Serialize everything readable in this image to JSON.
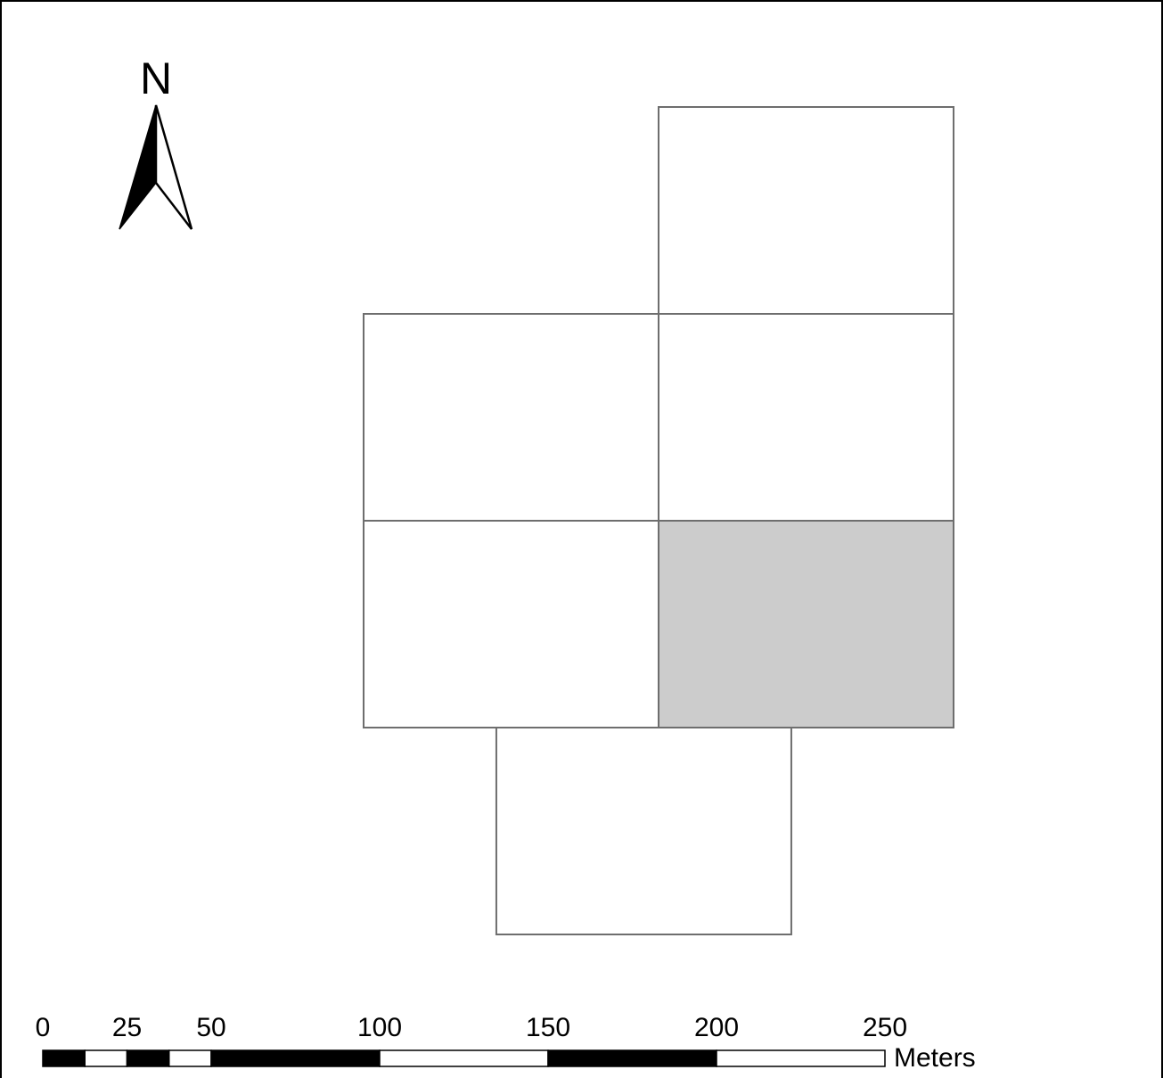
{
  "north_arrow": {
    "label": "N"
  },
  "map": {
    "cells": [
      {
        "row": 0,
        "col": 1,
        "highlighted": false
      },
      {
        "row": 1,
        "col": 0,
        "highlighted": false
      },
      {
        "row": 1,
        "col": 1,
        "highlighted": false
      },
      {
        "row": 2,
        "col": 0,
        "highlighted": false
      },
      {
        "row": 2,
        "col": 1,
        "highlighted": true
      },
      {
        "row": 3,
        "col": 0.45,
        "highlighted": false
      }
    ],
    "colors": {
      "outline": "#6e6e6e",
      "highlight_fill": "#cccccc",
      "fill": "#ffffff"
    }
  },
  "scale_bar": {
    "tick_labels": [
      "0",
      "25",
      "50",
      "100",
      "150",
      "200",
      "250"
    ],
    "unit": "Meters"
  }
}
